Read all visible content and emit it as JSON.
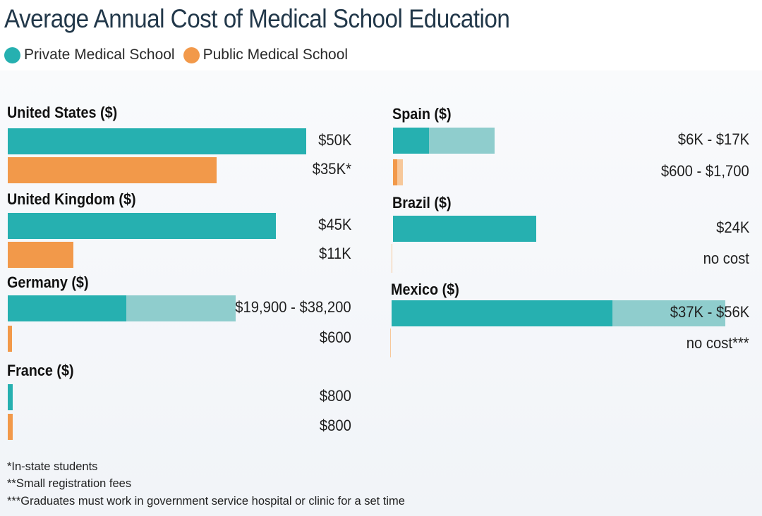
{
  "title": "Average Annual Cost of Medical School Education",
  "legend": [
    {
      "label": "Private Medical School",
      "color": "#26b0b0"
    },
    {
      "label": "Public Medical School",
      "color": "#f2994a"
    }
  ],
  "colors": {
    "private": "#26b0b0",
    "private_range": "#8fcdcd",
    "public": "#f2994a",
    "public_range": "#f7c89a"
  },
  "chart_data": {
    "type": "bar",
    "orientation": "horizontal",
    "title": "Average Annual Cost of Medical School Education",
    "unit": "USD",
    "xlim": [
      0,
      58000
    ],
    "series": [
      {
        "name": "Private Medical School"
      },
      {
        "name": "Public Medical School"
      }
    ],
    "groups": [
      {
        "country": "United States",
        "label": "United States ($)",
        "private": {
          "min": 50000,
          "max": 50000,
          "label": "$50K"
        },
        "public": {
          "min": 35000,
          "max": 35000,
          "label": "$35K*"
        }
      },
      {
        "country": "United Kingdom",
        "label": "United Kingdom ($)",
        "private": {
          "min": 45000,
          "max": 45000,
          "label": "$45K"
        },
        "public": {
          "min": 11000,
          "max": 11000,
          "label": "$11K"
        }
      },
      {
        "country": "Germany",
        "label": "Germany ($)",
        "private": {
          "min": 19900,
          "max": 38200,
          "label": "$19,900 - $38,200"
        },
        "public": {
          "min": 600,
          "max": 600,
          "label": "$600"
        }
      },
      {
        "country": "France",
        "label": "France ($)",
        "private": {
          "min": 800,
          "max": 800,
          "label": "$800"
        },
        "public": {
          "min": 800,
          "max": 800,
          "label": "$800"
        }
      },
      {
        "country": "Spain",
        "label": "Spain ($)",
        "private": {
          "min": 6000,
          "max": 17000,
          "label": "$6K - $17K"
        },
        "public": {
          "min": 600,
          "max": 1700,
          "label": "$600 - $1,700"
        }
      },
      {
        "country": "Brazil",
        "label": "Brazil ($)",
        "private": {
          "min": 24000,
          "max": 24000,
          "label": "$24K"
        },
        "public": {
          "min": 0,
          "max": 0,
          "label": "no cost"
        }
      },
      {
        "country": "Mexico",
        "label": "Mexico ($)",
        "private": {
          "min": 37000,
          "max": 56000,
          "label": "$37K - $56K"
        },
        "public": {
          "min": 0,
          "max": 0,
          "label": "no cost***"
        }
      }
    ]
  },
  "footnotes": [
    "*In-state students",
    "**Small registration fees",
    "***Graduates must work in government service hospital or clinic for a set time"
  ]
}
